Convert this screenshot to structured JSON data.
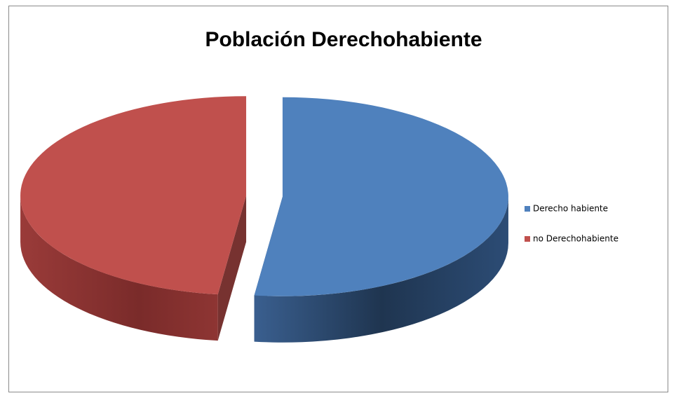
{
  "chart_data": {
    "type": "pie",
    "title": "Población Derechohabiente",
    "categories": [
      "Derecho habiente",
      "no Derechohabiente"
    ],
    "values": [
      52,
      48
    ],
    "colors": [
      "#4f81bd",
      "#c0504d"
    ],
    "legend": "right"
  }
}
